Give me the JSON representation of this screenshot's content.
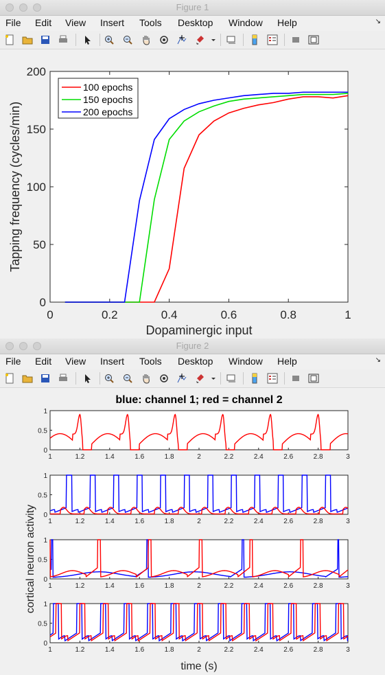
{
  "figure1": {
    "window_title": "Figure 1",
    "menu": [
      "File",
      "Edit",
      "View",
      "Insert",
      "Tools",
      "Desktop",
      "Window",
      "Help"
    ],
    "toolbar_icons": [
      "new-file-icon",
      "open-folder-icon",
      "save-icon",
      "print-icon",
      "pointer-icon",
      "zoom-in-icon",
      "zoom-out-icon",
      "pan-hand-icon",
      "rotate-3d-icon",
      "data-cursor-icon",
      "brush-icon",
      "brush-dropdown-icon",
      "link-plot-icon",
      "colorbar-icon",
      "legend-icon",
      "hide-plot-tools-icon",
      "show-plot-tools-icon"
    ],
    "chart_data": {
      "type": "line",
      "title": "",
      "xlabel": "Dopaminergic input",
      "ylabel": "Tapping frequency (cycles/min)",
      "xlim": [
        0,
        1
      ],
      "ylim": [
        0,
        200
      ],
      "xticks": [
        "0",
        "0.2",
        "0.4",
        "0.6",
        "0.8",
        "1"
      ],
      "yticks": [
        "0",
        "50",
        "100",
        "150",
        "200"
      ],
      "legend_position": "top-left",
      "series": [
        {
          "name": "100 epochs",
          "color": "#ff0000",
          "x": [
            0.05,
            0.1,
            0.15,
            0.2,
            0.25,
            0.3,
            0.35,
            0.4,
            0.45,
            0.5,
            0.55,
            0.6,
            0.65,
            0.7,
            0.75,
            0.8,
            0.85,
            0.9,
            0.95,
            1.0
          ],
          "y": [
            0,
            0,
            0,
            0,
            0,
            0,
            0,
            29,
            116,
            145,
            157,
            164,
            168,
            171,
            173,
            176,
            178,
            178,
            177,
            179
          ]
        },
        {
          "name": "150 epochs",
          "color": "#00dd00",
          "x": [
            0.05,
            0.1,
            0.15,
            0.2,
            0.25,
            0.3,
            0.35,
            0.4,
            0.45,
            0.5,
            0.55,
            0.6,
            0.65,
            0.7,
            0.75,
            0.8,
            0.85,
            0.9,
            0.95,
            1.0
          ],
          "y": [
            0,
            0,
            0,
            0,
            0,
            0,
            89,
            141,
            157,
            165,
            170,
            174,
            176,
            177,
            178,
            179,
            180,
            180,
            180,
            181
          ]
        },
        {
          "name": "200 epochs",
          "color": "#0000ff",
          "x": [
            0.05,
            0.1,
            0.15,
            0.2,
            0.25,
            0.3,
            0.35,
            0.4,
            0.45,
            0.5,
            0.55,
            0.6,
            0.65,
            0.7,
            0.75,
            0.8,
            0.85,
            0.9,
            0.95,
            1.0
          ],
          "y": [
            0,
            0,
            0,
            0,
            0,
            88,
            141,
            159,
            167,
            172,
            175,
            177,
            179,
            180,
            181,
            181,
            182,
            182,
            182,
            182
          ]
        }
      ]
    }
  },
  "figure2": {
    "window_title": "Figure 2",
    "menu": [
      "File",
      "Edit",
      "View",
      "Insert",
      "Tools",
      "Desktop",
      "Window",
      "Help"
    ],
    "chart_data": {
      "type": "line",
      "title": "blue: channel 1; red = channel 2",
      "xlabel": "time (s)",
      "ylabel": "cortical neuron activity",
      "xlim": [
        1,
        3
      ],
      "ylim": [
        0,
        1
      ],
      "xticks": [
        "1",
        "1.2",
        "1.4",
        "1.6",
        "1.8",
        "2",
        "2.2",
        "2.4",
        "2.6",
        "2.8",
        "3"
      ],
      "yticks": [
        "0",
        "0.5",
        "1"
      ],
      "series_colors": {
        "channel1": "#0000ff",
        "channel2": "#ff0000"
      },
      "panels": [
        {
          "name": "panel 1",
          "channel2": {
            "period": 0.32,
            "first_peak": 1.2,
            "peak": 0.9,
            "shoulder": 0.4,
            "floor": 0
          },
          "channel1": null
        },
        {
          "name": "panel 2",
          "channel1": {
            "period": 0.158,
            "first_rise": 1.11,
            "width": 0.035,
            "high": 1.0,
            "pre": 0.15
          },
          "channel2": {
            "period": 0.158,
            "first_bump": 1.07,
            "peak": 0.17
          }
        },
        {
          "name": "panel 3",
          "channel1": {
            "period": 0.64,
            "first_rise": 1.65,
            "width": 0.01,
            "high": 1.0,
            "bump": 0.25
          },
          "channel2": {
            "period": 0.34,
            "first_rise": 1.32,
            "width": 0.02,
            "high": 1.0,
            "bump": 0.3
          }
        },
        {
          "name": "panel 4",
          "channel1": {
            "period": 0.158,
            "first_rise": 1.18,
            "width": 0.035,
            "high": 1.0,
            "bump": 0.25
          },
          "channel2": {
            "period": 0.158,
            "first_rise": 1.04,
            "width": 0.035,
            "high": 1.0,
            "bump": 0.25
          }
        }
      ]
    }
  }
}
